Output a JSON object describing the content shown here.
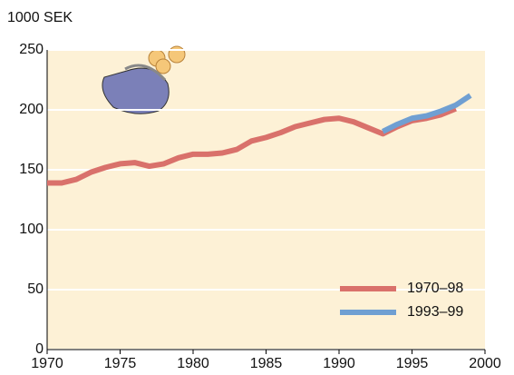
{
  "chart_data": {
    "type": "line",
    "y_label": "1000 SEK",
    "x": [
      1970,
      1971,
      1972,
      1973,
      1974,
      1975,
      1976,
      1977,
      1978,
      1979,
      1980,
      1981,
      1982,
      1983,
      1984,
      1985,
      1986,
      1987,
      1988,
      1989,
      1990,
      1991,
      1992,
      1993,
      1994,
      1995,
      1996,
      1997,
      1998,
      1999
    ],
    "series": [
      {
        "name": "1970–98",
        "color": "#d9716b",
        "values": [
          139,
          139,
          142,
          148,
          152,
          155,
          156,
          153,
          155,
          160,
          163,
          163,
          164,
          167,
          174,
          177,
          181,
          186,
          189,
          192,
          193,
          190,
          185,
          180,
          186,
          191,
          193,
          196,
          201,
          null
        ]
      },
      {
        "name": "1993–99",
        "color": "#6f9fd2",
        "values": [
          null,
          null,
          null,
          null,
          null,
          null,
          null,
          null,
          null,
          null,
          null,
          null,
          null,
          null,
          null,
          null,
          null,
          null,
          null,
          null,
          null,
          null,
          null,
          182,
          188,
          193,
          195,
          199,
          204,
          212
        ]
      }
    ],
    "xlim": [
      1970,
      2000
    ],
    "xticks": [
      1970,
      1975,
      1980,
      1985,
      1990,
      1995,
      2000
    ],
    "ylim": [
      0,
      250
    ],
    "yticks": [
      0,
      50,
      100,
      150,
      200,
      250
    ],
    "grid": true
  }
}
